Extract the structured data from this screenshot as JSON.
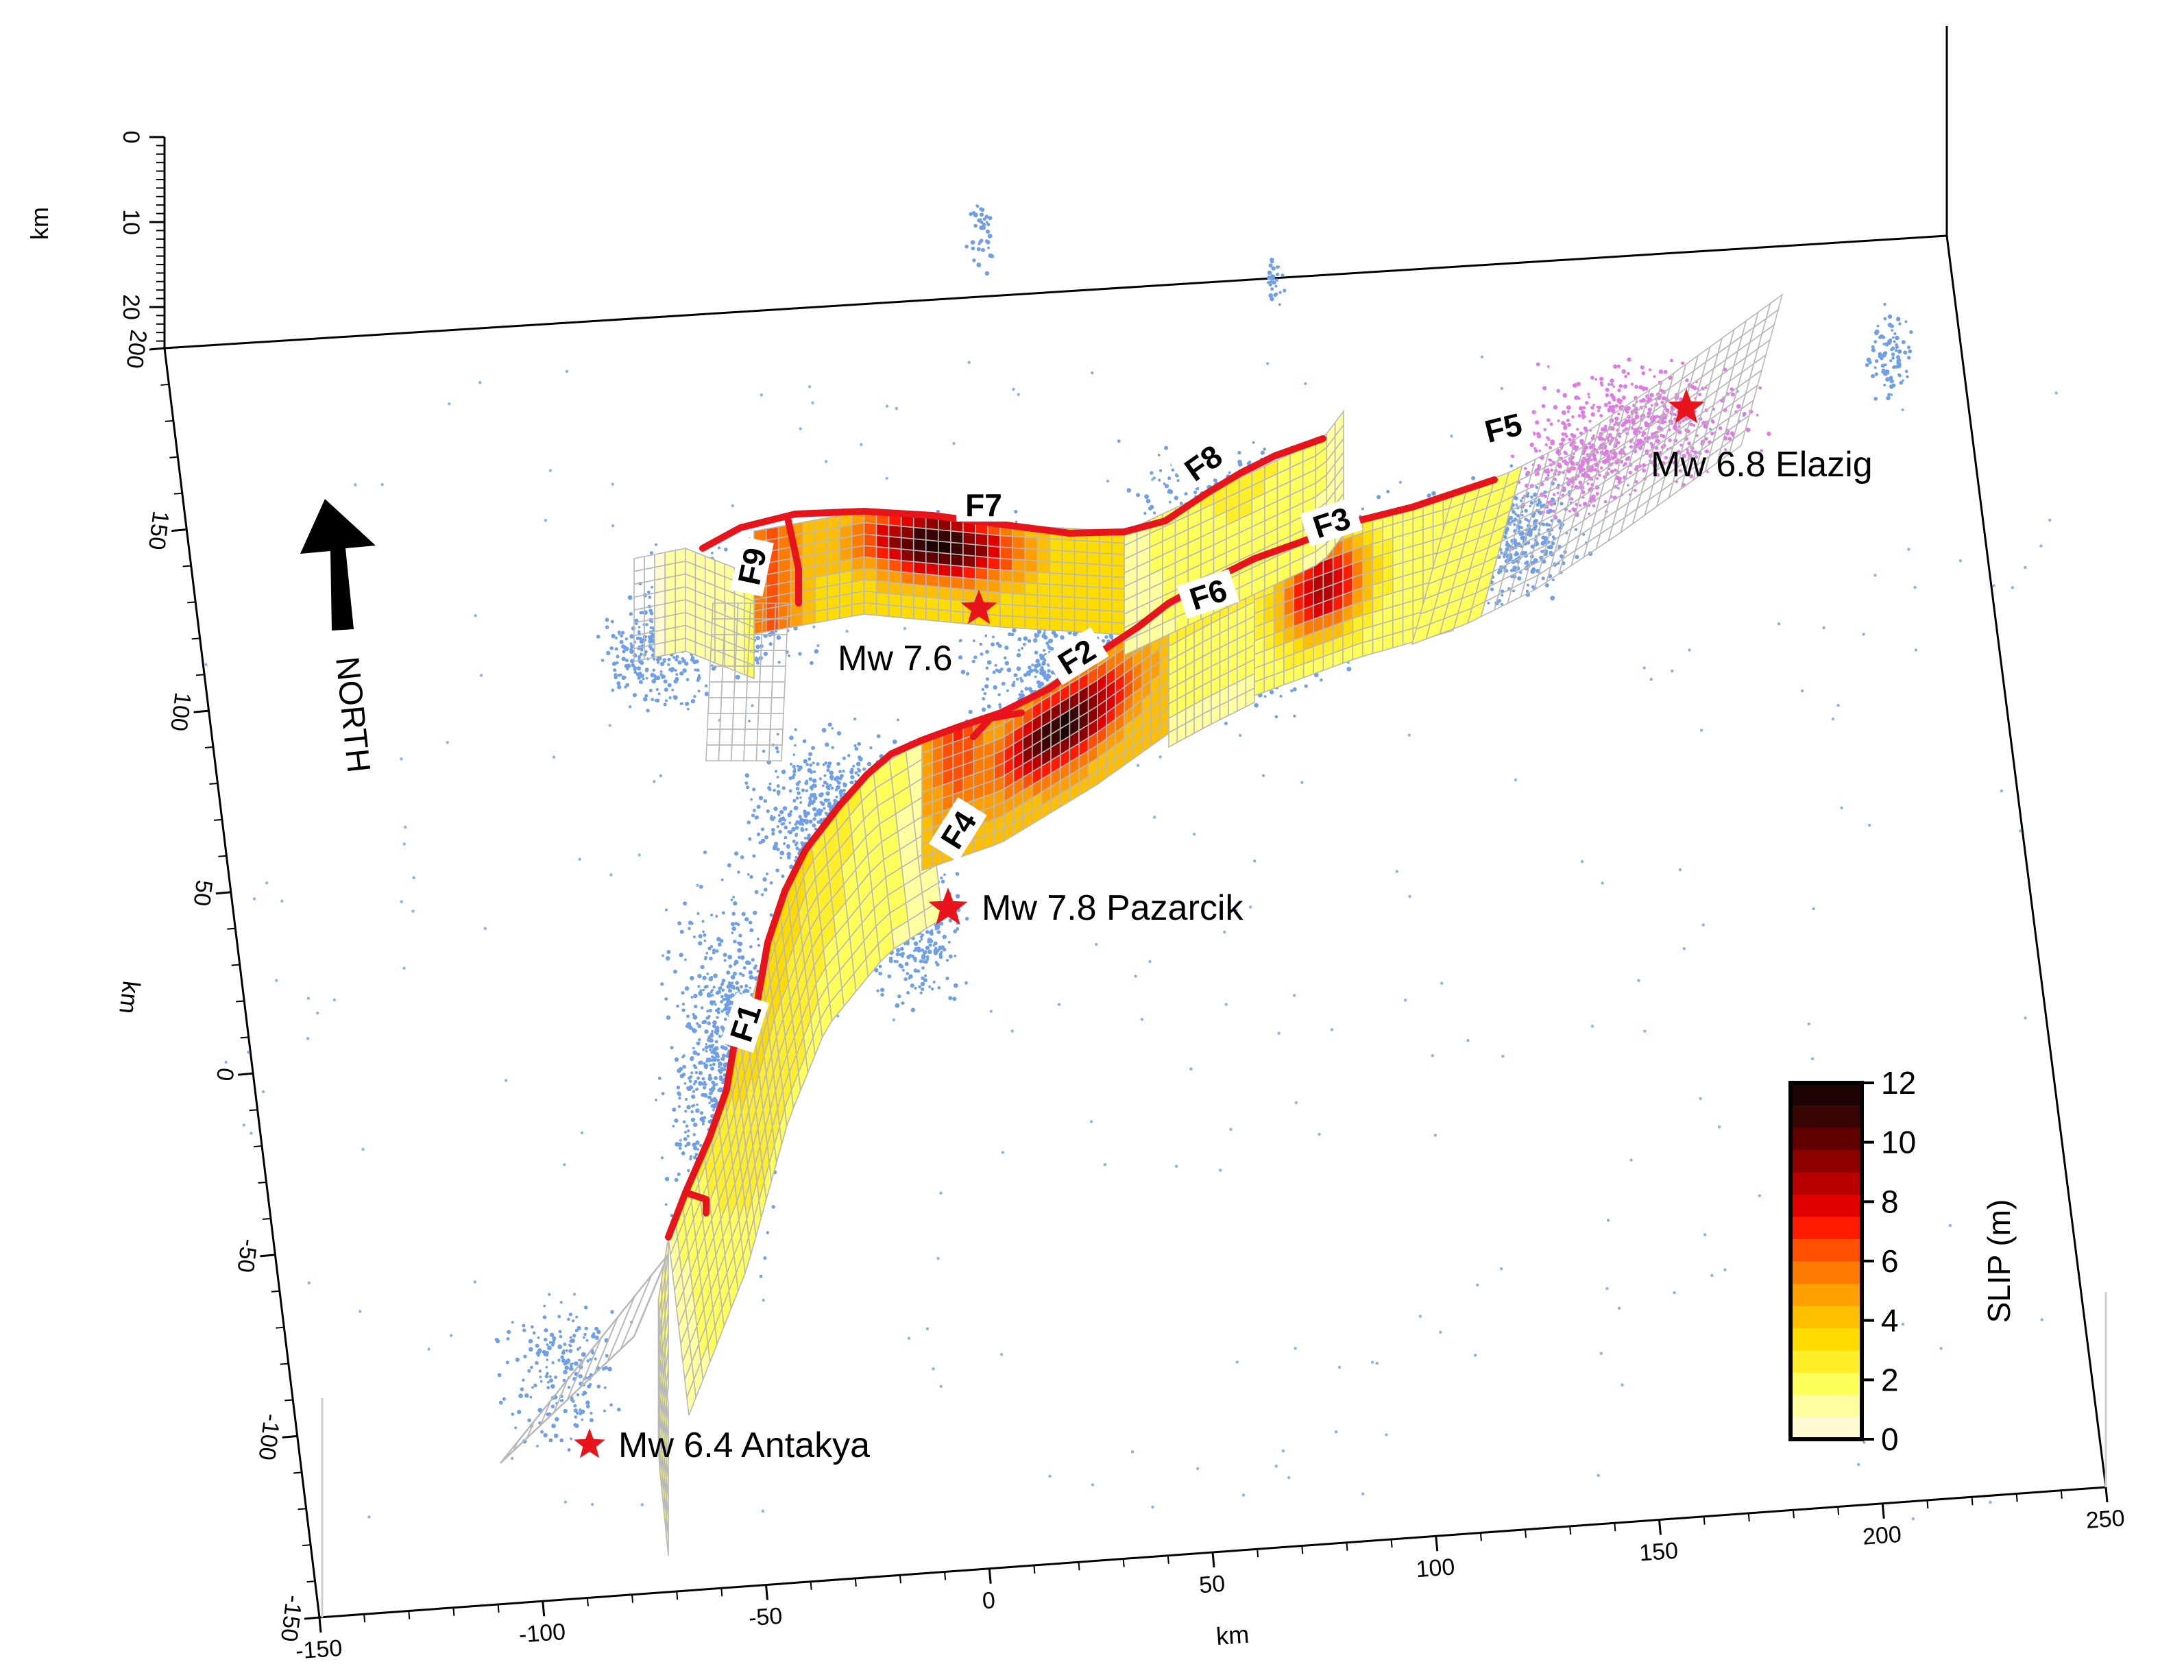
{
  "north": {
    "label": "NORTH"
  },
  "axes": {
    "x": {
      "ticks": [
        "-150",
        "-100",
        "-50",
        "0",
        "50",
        "100",
        "150",
        "200",
        "250"
      ],
      "unit": "km"
    },
    "y": {
      "ticks": [
        "-150",
        "-100",
        "-50",
        "0",
        "50",
        "100",
        "150",
        "200"
      ],
      "unit": "km"
    },
    "z": {
      "ticks": [
        "0",
        "10",
        "20"
      ],
      "unit": "km"
    }
  },
  "faults": [
    {
      "id": "F1",
      "label": "F1"
    },
    {
      "id": "F2",
      "label": "F2"
    },
    {
      "id": "F3",
      "label": "F3"
    },
    {
      "id": "F4",
      "label": "F4"
    },
    {
      "id": "F5",
      "label": "F5"
    },
    {
      "id": "F6",
      "label": "F6"
    },
    {
      "id": "F7",
      "label": "F7"
    },
    {
      "id": "F8",
      "label": "F8"
    },
    {
      "id": "F9",
      "label": "F9"
    }
  ],
  "earthquakes": [
    {
      "id": "mw78",
      "label": "Mw 7.8 Pazarcik",
      "magnitude": 7.8
    },
    {
      "id": "mw76",
      "label": "Mw 7.6",
      "magnitude": 7.6
    },
    {
      "id": "mw64",
      "label": "Mw 6.4 Antakya",
      "magnitude": 6.4
    },
    {
      "id": "mw68",
      "label": "Mw 6.8 Elazig",
      "magnitude": 6.8
    }
  ],
  "colorbar": {
    "title": "SLIP (m)",
    "min": 0,
    "max": 12,
    "tick_labels": [
      "0",
      "2",
      "4",
      "6",
      "8",
      "10",
      "12"
    ],
    "colors": [
      "#fffad2",
      "#ffff9f",
      "#ffff5c",
      "#ffee2a",
      "#ffdc00",
      "#ffbf00",
      "#ffa000",
      "#ff7b00",
      "#ff4f00",
      "#ff1a00",
      "#e00000",
      "#b80000",
      "#8c0000",
      "#600000",
      "#3a0505",
      "#1e0303"
    ],
    "colors_by_band": "#fffbe0"
  },
  "colors": {
    "fault_trace": "#e8141c",
    "aftershock": "#6f9fe6",
    "aftershock_elazig": "#e07be5",
    "mesh": "#b8b8b8",
    "star": "#e8141c"
  }
}
